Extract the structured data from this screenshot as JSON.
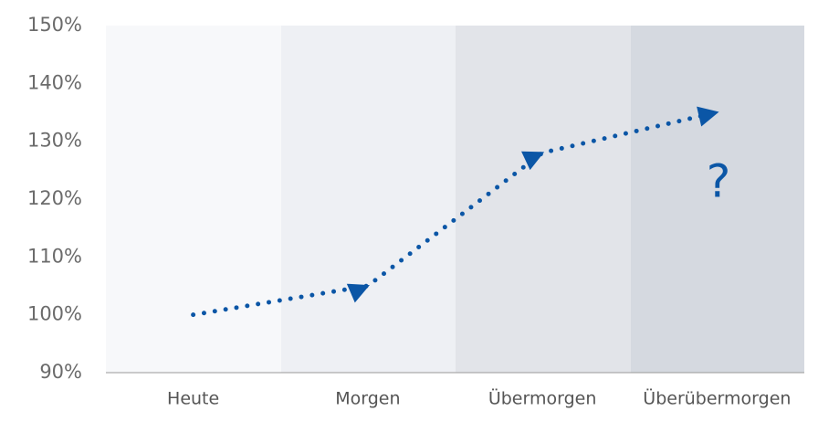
{
  "chart_data": {
    "type": "line",
    "categories": [
      "Heute",
      "Morgen",
      "Übermorgen",
      "Überübermorgen"
    ],
    "series": [
      {
        "color": "#0b56a6",
        "values": [
          100,
          105,
          128,
          135
        ]
      }
    ],
    "ylim": [
      90,
      150
    ],
    "yticks": [
      {
        "value": 90,
        "label": "90%"
      },
      {
        "value": 100,
        "label": "100%"
      },
      {
        "value": 110,
        "label": "110%"
      },
      {
        "value": 120,
        "label": "120%"
      },
      {
        "value": 130,
        "label": "130%"
      },
      {
        "value": 140,
        "label": "140%"
      },
      {
        "value": 150,
        "label": "150%"
      }
    ],
    "annotation": "?"
  }
}
